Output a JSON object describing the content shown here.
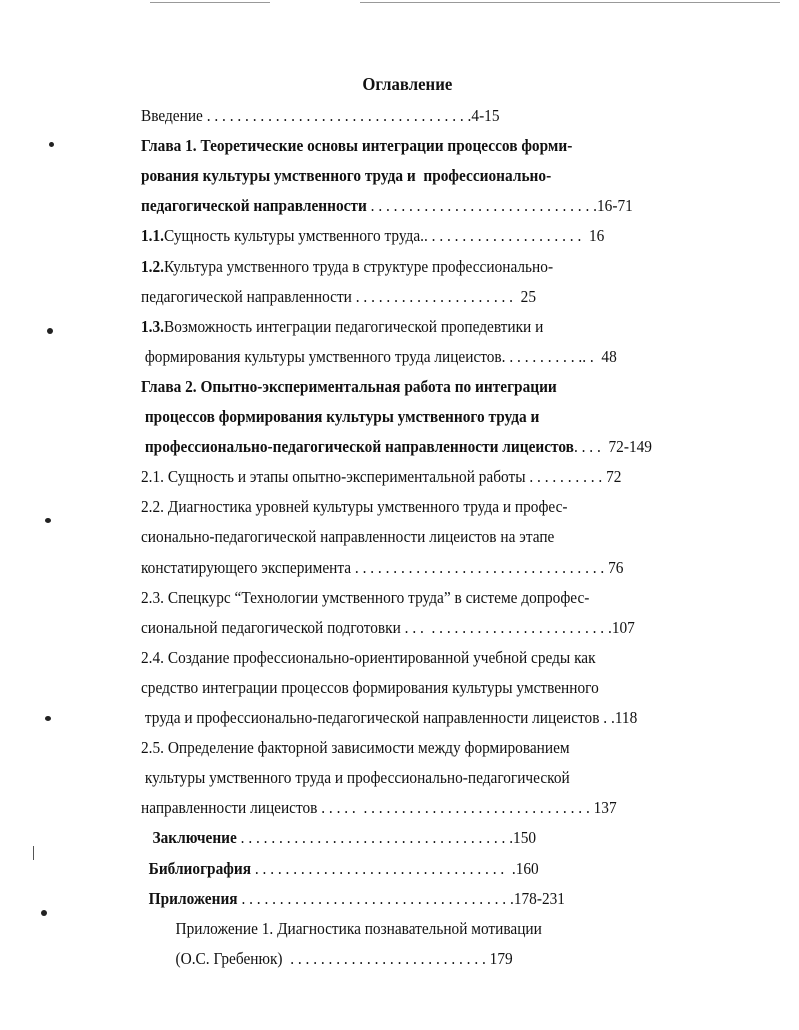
{
  "title": "Оглавление",
  "lines": [
    {
      "pre": "",
      "text": "Введение",
      "dots": " . . . . . . . . . . . . . . . . . . . . . . . . . . . . . . . . . . .",
      "page": "4-15",
      "bold": false
    },
    {
      "pre": "",
      "text": "Глава 1. Теоретические основы интеграции процессов форми-",
      "dots": "",
      "page": "",
      "bold": true
    },
    {
      "pre": "",
      "text": "рования культуры умственного труда и  профессионально-",
      "dots": "",
      "page": "",
      "bold": true
    },
    {
      "pre": "",
      "text": "педагогической направленности",
      "dots": " . . . . . . . . . . . . . . . . . . . . . . . . . . . . . .",
      "page": "16-71",
      "bold": true
    },
    {
      "pre": "1.1.",
      "text": "Сущность культуры умственного труда",
      "dots": ".. . . . . . . . . . . . . . . . . . . . .  ",
      "page": "16",
      "bold": false
    },
    {
      "pre": "1.2.",
      "text": "Культура умственного труда в структуре профессионально-",
      "dots": "",
      "page": "",
      "bold": false
    },
    {
      "pre": "",
      "text": "педагогической направленности",
      "dots": " . . . . . . . . . . . . . . . . . . . . .  ",
      "page": "25",
      "bold": false
    },
    {
      "pre": "1.3.",
      "text": "Возможность интеграции педагогической пропедевтики и",
      "dots": "",
      "page": "",
      "bold": false
    },
    {
      "pre": "",
      "text": " формирования культуры умственного труда лицеистов",
      "dots": ". . . . . . . . . . .. .  ",
      "page": "48",
      "bold": false
    },
    {
      "pre": "",
      "text": "Глава 2. Опытно-экспериментальная работа по интеграции",
      "dots": "",
      "page": "",
      "bold": true
    },
    {
      "pre": "",
      "text": " процессов формирования культуры умственного труда и",
      "dots": "",
      "page": "",
      "bold": true
    },
    {
      "pre": "",
      "text": " профессионально-педагогической направленности лицеистов",
      "dots": ". . . .  ",
      "page": "72-149",
      "bold": true
    },
    {
      "pre": "",
      "text": "2.1. Сущность и этапы опытно-экспериментальной работы",
      "dots": " . . . . . . . . . . ",
      "page": "72",
      "bold": false
    },
    {
      "pre": "",
      "text": "2.2. Диагностика уровней культуры умственного труда и профес-",
      "dots": "",
      "page": "",
      "bold": false
    },
    {
      "pre": "",
      "text": "сионально-педагогической направленности лицеистов на этапе",
      "dots": "",
      "page": "",
      "bold": false
    },
    {
      "pre": "",
      "text": "констатирующего эксперимента",
      "dots": " . . . . . . . . . . . . . . . . . . . . . . . . . . . . . . . . . ",
      "page": "76",
      "bold": false
    },
    {
      "pre": "",
      "text": "2.3. Спецкурс “Технологии умственного труда” в системе допрофес-",
      "dots": "",
      "page": "",
      "bold": false
    },
    {
      "pre": "",
      "text": "сиональной педагогической подготовки",
      "dots": " . . .  . . . . . . . . . . . . . . . . . . . . . . . ",
      "page": ".107",
      "bold": false
    },
    {
      "pre": "",
      "text": "2.4. Создание профессионально-ориентированной учебной среды как",
      "dots": "",
      "page": "",
      "bold": false
    },
    {
      "pre": "",
      "text": "средство интеграции процессов формирования культуры умственного",
      "dots": "",
      "page": "",
      "bold": false
    },
    {
      "pre": "",
      "text": " труда и профессионально-педагогической направленности лицеистов",
      "dots": " . .",
      "page": "118",
      "bold": false
    },
    {
      "pre": "",
      "text": "2.5. Определение факторной зависимости между формированием",
      "dots": "",
      "page": "",
      "bold": false
    },
    {
      "pre": "",
      "text": " культуры умственного труда и профессионально-педагогической",
      "dots": "",
      "page": "",
      "bold": false
    },
    {
      "pre": "",
      "text": "направленности лицеистов",
      "dots": " . . . . .  . . . . . . . . . . . . . . . . . . . . . . . . . . . . . . ",
      "page": "137",
      "bold": false
    },
    {
      "pre": "",
      "text": "   Заключение",
      "dots": " . . . . . . . . . . . . . . . . . . . . . . . . . . . . . . . . . . . .",
      "page": "150",
      "bold": true
    },
    {
      "pre": "",
      "text": "  Библиография",
      "dots": " . . . . . . . . . . . . . . . . . . . . . . . . . . . . . . . . .  .",
      "page": "160",
      "bold": true
    },
    {
      "pre": "",
      "text": "  Приложения",
      "dots": " . . . . . . . . . . . . . . . . . . . . . . . . . . . . . . . . . . . .",
      "page": "178-231",
      "bold": true
    },
    {
      "pre": "",
      "text": "         Приложение 1. Диагностика познавательной мотивации",
      "dots": "",
      "page": "",
      "bold": false
    },
    {
      "pre": "",
      "text": "         (О.С. Гребенюк)",
      "dots": "  . . . . . . . . . . . . . . . . . . . . . . . . . . ",
      "page": "179",
      "bold": false
    }
  ]
}
